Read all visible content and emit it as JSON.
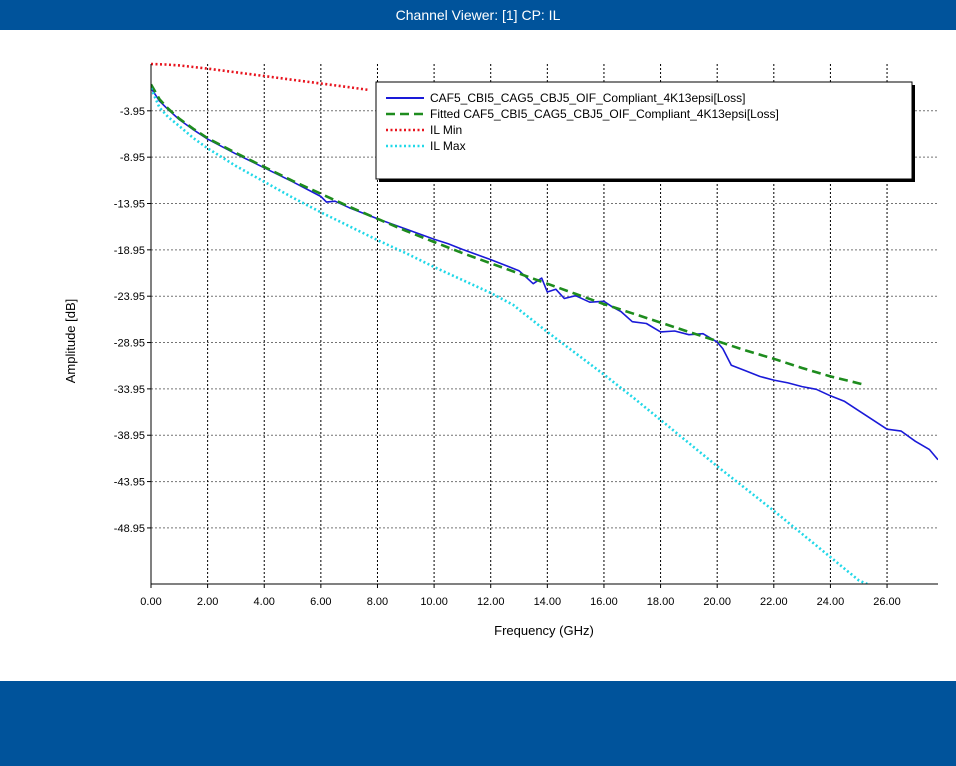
{
  "window": {
    "title": "Channel Viewer: [1] CP: IL"
  },
  "chart_data": {
    "type": "line",
    "xlabel": "Frequency (GHz)",
    "ylabel": "Amplitude [dB]",
    "xlim": [
      0,
      27.8
    ],
    "ylim": [
      -55,
      1.1
    ],
    "x_ticks": [
      "0.00",
      "2.00",
      "4.00",
      "6.00",
      "8.00",
      "10.00",
      "12.00",
      "14.00",
      "16.00",
      "18.00",
      "20.00",
      "22.00",
      "24.00",
      "26.00"
    ],
    "y_ticks": [
      "-3.95",
      "-8.95",
      "-13.95",
      "-18.95",
      "-23.95",
      "-28.95",
      "-33.95",
      "-38.95",
      "-43.95",
      "-48.95"
    ],
    "grid": true,
    "legend_position": "top-right",
    "series": [
      {
        "name": "CAF5_CBI5_CAG5_CBJ5_OIF_Compliant_4K13epsi[Loss]",
        "color": "#1a1ad8",
        "style": "solid",
        "x": [
          0,
          0.3,
          0.6,
          1,
          1.5,
          2,
          3,
          4,
          5,
          6,
          6.2,
          6.5,
          7,
          8,
          9,
          10,
          10.5,
          11,
          12,
          13,
          13.5,
          13.8,
          14,
          14.3,
          14.6,
          15,
          15.5,
          16,
          16.3,
          16.6,
          17,
          17.5,
          18,
          18.5,
          19,
          19.5,
          20,
          20.2,
          20.5,
          21,
          21.5,
          22,
          22.5,
          23,
          23.5,
          24,
          24.5,
          25,
          25.5,
          26,
          26.5,
          27,
          27.5,
          27.8
        ],
        "y": [
          -1.5,
          -2.9,
          -3.8,
          -4.9,
          -6,
          -7,
          -8.6,
          -10.1,
          -11.6,
          -13.2,
          -13.8,
          -13.7,
          -14.4,
          -15.6,
          -16.7,
          -17.8,
          -18.3,
          -18.9,
          -20,
          -21.2,
          -22.6,
          -22.0,
          -23.5,
          -23.2,
          -24.2,
          -23.9,
          -24.6,
          -24.5,
          -25.1,
          -25.6,
          -26.7,
          -26.9,
          -27.8,
          -27.7,
          -28.1,
          -28.0,
          -28.9,
          -29.6,
          -31.4,
          -32.0,
          -32.6,
          -33.0,
          -33.3,
          -33.7,
          -34.0,
          -34.7,
          -35.3,
          -36.3,
          -37.3,
          -38.3,
          -38.5,
          -39.6,
          -40.5,
          -41.6
        ]
      },
      {
        "name": "Fitted CAF5_CBI5_CAG5_CBJ5_OIF_Compliant_4K13epsi[Loss]",
        "color": "#1e8c1e",
        "style": "dashed",
        "x": [
          0,
          0.3,
          0.6,
          1,
          1.5,
          2,
          3,
          4,
          5,
          6,
          7,
          8,
          9,
          10,
          11,
          12,
          13,
          14,
          15,
          16,
          17,
          18,
          19,
          20,
          21,
          22,
          23,
          24,
          25.2
        ],
        "y": [
          -1.1,
          -2.7,
          -3.7,
          -4.8,
          -5.9,
          -6.9,
          -8.5,
          -10,
          -11.5,
          -12.9,
          -14.3,
          -15.6,
          -16.9,
          -18.1,
          -19.3,
          -20.4,
          -21.5,
          -22.6,
          -23.7,
          -24.8,
          -25.8,
          -26.8,
          -27.8,
          -28.8,
          -29.8,
          -30.7,
          -31.7,
          -32.6,
          -33.5
        ]
      },
      {
        "name": "IL Min",
        "color": "#e8141e",
        "style": "dotted",
        "x": [
          0,
          0.5,
          1,
          2,
          3,
          4,
          5,
          6,
          7,
          7.7
        ],
        "y": [
          1.1,
          1.05,
          0.95,
          0.6,
          0.2,
          -0.2,
          -0.6,
          -1.0,
          -1.4,
          -1.7
        ]
      },
      {
        "name": "IL Max",
        "color": "#20d8e8",
        "style": "dotted",
        "x": [
          0,
          0.3,
          0.6,
          1,
          1.5,
          2,
          3,
          4,
          5,
          6,
          7,
          8,
          9,
          10,
          11,
          12,
          12.8,
          13,
          14,
          15,
          16,
          17,
          18,
          19,
          20,
          21,
          22,
          23,
          24,
          25,
          25.3
        ],
        "y": [
          -1.5,
          -3.6,
          -4.6,
          -5.6,
          -6.9,
          -8.0,
          -9.9,
          -11.6,
          -13.3,
          -14.9,
          -16.4,
          -17.9,
          -19.3,
          -20.8,
          -22.2,
          -23.6,
          -24.9,
          -25.4,
          -27.8,
          -30.1,
          -32.4,
          -34.8,
          -37.3,
          -39.8,
          -42.3,
          -44.7,
          -47.1,
          -49.6,
          -52.1,
          -54.6,
          -55.0
        ]
      }
    ]
  }
}
